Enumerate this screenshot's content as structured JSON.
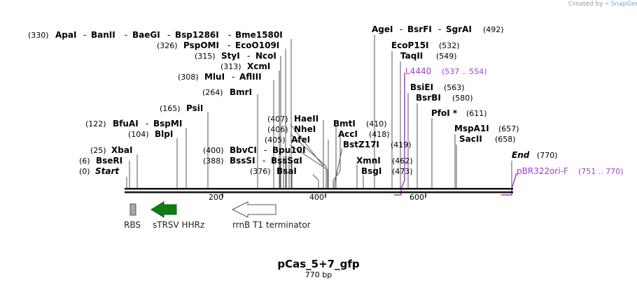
{
  "credit": {
    "text": "Created by",
    "brand": "SnapGene",
    "icon": "snapgene-logo-icon"
  },
  "plasmid": {
    "name": "pCas_5+7_gfp",
    "length_label": "770 bp"
  },
  "ruler": {
    "ticks": [
      "200",
      "400",
      "600"
    ]
  },
  "labels": [
    {
      "text": "(330)",
      "kind": "pos"
    },
    {
      "text": "ApaI",
      "kind": "en"
    },
    {
      "text": "-",
      "kind": "sep"
    },
    {
      "text": "BanII",
      "kind": "en"
    },
    {
      "text": "-",
      "kind": "sep"
    },
    {
      "text": "BaeGI",
      "kind": "en"
    },
    {
      "text": "-",
      "kind": "sep"
    },
    {
      "text": "Bsp1286I",
      "kind": "en"
    },
    {
      "text": "-",
      "kind": "sep"
    },
    {
      "text": "Bme1580I",
      "kind": "en"
    },
    {
      "text": "(326)",
      "kind": "pos"
    },
    {
      "text": "PspOMI",
      "kind": "en"
    },
    {
      "text": "-",
      "kind": "sep"
    },
    {
      "text": "EcoO109I",
      "kind": "en"
    },
    {
      "text": "(315)",
      "kind": "pos"
    },
    {
      "text": "StyI",
      "kind": "en"
    },
    {
      "text": "-",
      "kind": "sep"
    },
    {
      "text": "NcoI",
      "kind": "en"
    },
    {
      "text": "(313)",
      "kind": "pos"
    },
    {
      "text": "XcmI",
      "kind": "en"
    },
    {
      "text": "(308)",
      "kind": "pos"
    },
    {
      "text": "MluI",
      "kind": "en"
    },
    {
      "text": "-",
      "kind": "sep"
    },
    {
      "text": "AflIII",
      "kind": "en"
    },
    {
      "text": "(264)",
      "kind": "pos"
    },
    {
      "text": "BmrI",
      "kind": "en"
    },
    {
      "text": "(165)",
      "kind": "pos"
    },
    {
      "text": "PsiI",
      "kind": "en"
    },
    {
      "text": "(122)",
      "kind": "pos"
    },
    {
      "text": "BfuAI",
      "kind": "en"
    },
    {
      "text": "-",
      "kind": "sep"
    },
    {
      "text": "BspMI",
      "kind": "en"
    },
    {
      "text": "(104)",
      "kind": "pos"
    },
    {
      "text": "BlpI",
      "kind": "en"
    },
    {
      "text": "(25)",
      "kind": "pos"
    },
    {
      "text": "XbaI",
      "kind": "en"
    },
    {
      "text": "(6)",
      "kind": "pos"
    },
    {
      "text": "BseRI",
      "kind": "en"
    },
    {
      "text": "(0)",
      "kind": "pos"
    },
    {
      "text": "Start",
      "kind": "en it"
    },
    {
      "text": "(400)",
      "kind": "pos"
    },
    {
      "text": "BbvCI",
      "kind": "en"
    },
    {
      "text": "-",
      "kind": "sep"
    },
    {
      "text": "Bpu10I",
      "kind": "en"
    },
    {
      "text": "(388)",
      "kind": "pos"
    },
    {
      "text": "BssSI",
      "kind": "en"
    },
    {
      "text": "-",
      "kind": "sep"
    },
    {
      "text": "BssSαI",
      "kind": "en"
    },
    {
      "text": "(376)",
      "kind": "pos"
    },
    {
      "text": "BsaI",
      "kind": "en"
    },
    {
      "text": "(407)",
      "kind": "pos"
    },
    {
      "text": "HaeII",
      "kind": "en"
    },
    {
      "text": "(406)",
      "kind": "pos"
    },
    {
      "text": "NheI",
      "kind": "en"
    },
    {
      "text": "(405)",
      "kind": "pos"
    },
    {
      "text": "AfeI",
      "kind": "en"
    },
    {
      "text": "BmtI",
      "kind": "en"
    },
    {
      "text": "(410)",
      "kind": "pos"
    },
    {
      "text": "AccI",
      "kind": "en"
    },
    {
      "text": "(418)",
      "kind": "pos"
    },
    {
      "text": "BstZ17I",
      "kind": "en"
    },
    {
      "text": "(419)",
      "kind": "pos"
    },
    {
      "text": "XmnI",
      "kind": "en"
    },
    {
      "text": "(462)",
      "kind": "pos"
    },
    {
      "text": "BsgI",
      "kind": "en"
    },
    {
      "text": "(473)",
      "kind": "pos"
    },
    {
      "text": "AgeI",
      "kind": "en"
    },
    {
      "text": "-",
      "kind": "sep"
    },
    {
      "text": "BsrFI",
      "kind": "en"
    },
    {
      "text": "-",
      "kind": "sep"
    },
    {
      "text": "SgrAI",
      "kind": "en"
    },
    {
      "text": "(492)",
      "kind": "pos"
    },
    {
      "text": "EcoP15I",
      "kind": "en"
    },
    {
      "text": "(532)",
      "kind": "pos"
    },
    {
      "text": "TaqII",
      "kind": "en"
    },
    {
      "text": "(549)",
      "kind": "pos"
    },
    {
      "text": "L4440",
      "kind": "prim"
    },
    {
      "text": "(537 .. 554)",
      "kind": "primpos"
    },
    {
      "text": "BsiEI",
      "kind": "en"
    },
    {
      "text": "(563)",
      "kind": "pos"
    },
    {
      "text": "BsrBI",
      "kind": "en"
    },
    {
      "text": "(580)",
      "kind": "pos"
    },
    {
      "text": "PfoI *",
      "kind": "en"
    },
    {
      "text": "(611)",
      "kind": "pos"
    },
    {
      "text": "MspA1I",
      "kind": "en"
    },
    {
      "text": "(657)",
      "kind": "pos"
    },
    {
      "text": "SacII",
      "kind": "en"
    },
    {
      "text": "(658)",
      "kind": "pos"
    },
    {
      "text": "End",
      "kind": "en it"
    },
    {
      "text": "(770)",
      "kind": "pos"
    },
    {
      "text": "pBR322ori-F",
      "kind": "prim"
    },
    {
      "text": "(751 .. 770)",
      "kind": "primpos"
    }
  ],
  "features": [
    {
      "name": "RBS",
      "type": "box",
      "color": "#a6a6ae"
    },
    {
      "name": "sTRSV HHRz",
      "type": "arrow-left",
      "color": "#0f7d12"
    },
    {
      "name": "rrnB T1 terminator",
      "type": "arrow-left",
      "color": "#ffffff"
    }
  ],
  "colors": {
    "primer": "#a53bd1",
    "backbone": "#111111",
    "site_line": "#555555"
  }
}
